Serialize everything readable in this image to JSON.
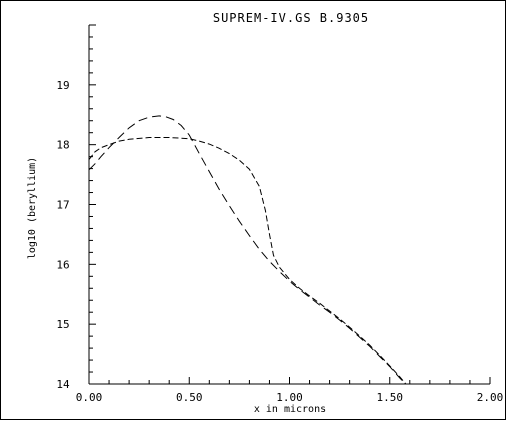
{
  "chart_data": {
    "type": "line",
    "title": "SUPREM-IV.GS B.9305",
    "xlabel": "x in microns",
    "ylabel": "log10 (beryllium)",
    "xlim": [
      0.0,
      2.0
    ],
    "ylim": [
      14,
      20
    ],
    "x_ticks": [
      0.0,
      0.5,
      1.0,
      1.5,
      2.0
    ],
    "x_tick_labels": [
      "0.00",
      "0.50",
      "1.00",
      "1.50",
      "2.00"
    ],
    "y_ticks": [
      14,
      15,
      16,
      17,
      18,
      19
    ],
    "y_tick_labels": [
      "14",
      "15",
      "16",
      "17",
      "18",
      "19"
    ],
    "grid": false,
    "series": [
      {
        "dash": "9,5",
        "x": [
          0.0,
          0.03,
          0.06,
          0.1,
          0.15,
          0.2,
          0.25,
          0.3,
          0.35,
          0.38,
          0.42,
          0.46,
          0.5,
          0.55,
          0.6,
          0.65,
          0.7,
          0.75,
          0.8,
          0.85,
          0.9,
          0.95,
          1.0,
          1.05,
          1.1,
          1.15,
          1.2,
          1.25,
          1.3,
          1.35,
          1.4,
          1.45,
          1.5,
          1.55,
          1.58
        ],
        "values": [
          17.58,
          17.68,
          17.8,
          17.95,
          18.12,
          18.28,
          18.4,
          18.46,
          18.48,
          18.47,
          18.42,
          18.32,
          18.16,
          17.85,
          17.55,
          17.25,
          16.98,
          16.72,
          16.48,
          16.25,
          16.05,
          15.88,
          15.72,
          15.58,
          15.45,
          15.32,
          15.2,
          15.07,
          14.93,
          14.78,
          14.63,
          14.46,
          14.29,
          14.1,
          14.0
        ]
      },
      {
        "dash": "6,3",
        "x": [
          0.0,
          0.03,
          0.06,
          0.1,
          0.15,
          0.2,
          0.3,
          0.35,
          0.4,
          0.45,
          0.5,
          0.55,
          0.6,
          0.65,
          0.7,
          0.75,
          0.8,
          0.85,
          0.88,
          0.9,
          0.92,
          0.95,
          1.0,
          1.05,
          1.1,
          1.15,
          1.2,
          1.25,
          1.3,
          1.35,
          1.4,
          1.45,
          1.5,
          1.55,
          1.58
        ],
        "values": [
          17.75,
          17.88,
          17.95,
          18.0,
          18.06,
          18.09,
          18.12,
          18.12,
          18.12,
          18.11,
          18.1,
          18.06,
          18.01,
          17.94,
          17.85,
          17.74,
          17.59,
          17.3,
          16.9,
          16.5,
          16.15,
          15.95,
          15.75,
          15.6,
          15.47,
          15.35,
          15.22,
          15.09,
          14.95,
          14.8,
          14.65,
          14.48,
          14.3,
          14.12,
          14.0
        ]
      }
    ]
  }
}
